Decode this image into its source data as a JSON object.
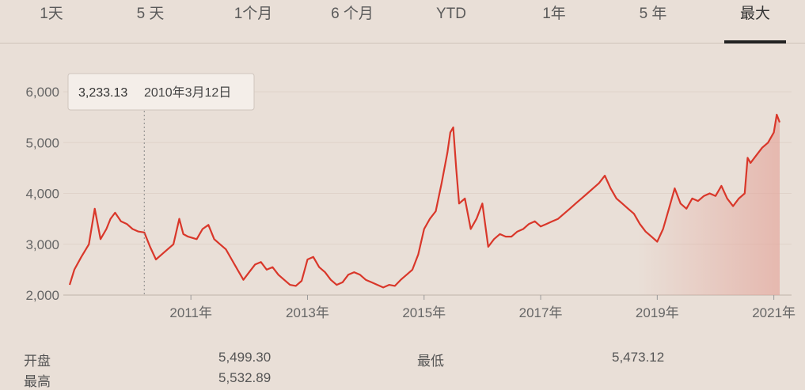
{
  "tabs": [
    {
      "label": "1天"
    },
    {
      "label": "5 天"
    },
    {
      "label": "1个月"
    },
    {
      "label": "6 个月"
    },
    {
      "label": "YTD"
    },
    {
      "label": "1年"
    },
    {
      "label": "5 年"
    },
    {
      "label": "最大"
    }
  ],
  "active_tab": "最大",
  "tooltip": {
    "value": "3,233.13",
    "date": "2010年3月12日"
  },
  "stats": {
    "open_label": "开盘",
    "open_value": "5,499.30",
    "low_label": "最低",
    "low_value": "5,473.12",
    "high_label": "最高",
    "high_value": "5,532.89"
  },
  "colors": {
    "line": "#d9372a",
    "background": "#e9dfd7",
    "fill": "#e4a89e"
  },
  "chart_data": {
    "type": "area",
    "xlabel": "",
    "ylabel": "",
    "y_ticks": [
      "2,000",
      "3,000",
      "4,000",
      "5,000",
      "6,000"
    ],
    "x_ticks": [
      "2011年",
      "2013年",
      "2015年",
      "2017年",
      "2019年",
      "2021年"
    ],
    "ylim": [
      2000,
      6300
    ],
    "grid": true,
    "series": [
      {
        "x": [
          2008.92,
          2009.0,
          2009.12,
          2009.25,
          2009.35,
          2009.45,
          2009.55,
          2009.62,
          2009.7,
          2009.8,
          2009.9,
          2010.0,
          2010.1,
          2010.2,
          2010.3,
          2010.4,
          2010.5,
          2010.6,
          2010.7,
          2010.8,
          2010.87,
          2010.95,
          2011.1,
          2011.2,
          2011.3,
          2011.4,
          2011.5,
          2011.6,
          2011.7,
          2011.8,
          2011.9,
          2012.0,
          2012.1,
          2012.2,
          2012.3,
          2012.4,
          2012.5,
          2012.6,
          2012.7,
          2012.8,
          2012.9,
          2013.0,
          2013.1,
          2013.2,
          2013.3,
          2013.4,
          2013.5,
          2013.6,
          2013.7,
          2013.8,
          2013.9,
          2014.0,
          2014.1,
          2014.2,
          2014.3,
          2014.4,
          2014.5,
          2014.6,
          2014.7,
          2014.8,
          2014.9,
          2015.0,
          2015.1,
          2015.2,
          2015.3,
          2015.4,
          2015.45,
          2015.5,
          2015.55,
          2015.6,
          2015.7,
          2015.8,
          2015.9,
          2016.0,
          2016.1,
          2016.2,
          2016.3,
          2016.4,
          2016.5,
          2016.6,
          2016.7,
          2016.8,
          2016.9,
          2017.0,
          2017.1,
          2017.2,
          2017.3,
          2017.4,
          2017.5,
          2017.6,
          2017.7,
          2017.8,
          2017.9,
          2018.0,
          2018.1,
          2018.2,
          2018.3,
          2018.4,
          2018.5,
          2018.6,
          2018.7,
          2018.8,
          2018.9,
          2019.0,
          2019.1,
          2019.2,
          2019.3,
          2019.4,
          2019.5,
          2019.6,
          2019.7,
          2019.8,
          2019.9,
          2020.0,
          2020.1,
          2020.2,
          2020.3,
          2020.4,
          2020.5,
          2020.55,
          2020.6,
          2020.7,
          2020.8,
          2020.9,
          2021.0,
          2021.05,
          2021.1
        ],
        "y": [
          2200,
          2500,
          2750,
          3000,
          3700,
          3100,
          3300,
          3500,
          3620,
          3450,
          3400,
          3300,
          3250,
          3233,
          2950,
          2700,
          2800,
          2900,
          3000,
          3500,
          3200,
          3150,
          3100,
          3300,
          3380,
          3100,
          3000,
          2900,
          2700,
          2500,
          2300,
          2450,
          2600,
          2650,
          2500,
          2550,
          2400,
          2300,
          2200,
          2180,
          2280,
          2700,
          2750,
          2550,
          2450,
          2300,
          2200,
          2250,
          2400,
          2450,
          2400,
          2300,
          2250,
          2200,
          2150,
          2200,
          2180,
          2300,
          2400,
          2500,
          2800,
          3300,
          3500,
          3650,
          4200,
          4800,
          5200,
          5300,
          4500,
          3800,
          3900,
          3300,
          3500,
          3800,
          2950,
          3100,
          3200,
          3150,
          3150,
          3250,
          3300,
          3400,
          3450,
          3350,
          3400,
          3450,
          3500,
          3600,
          3700,
          3800,
          3900,
          4000,
          4100,
          4200,
          4350,
          4100,
          3900,
          3800,
          3700,
          3600,
          3400,
          3250,
          3150,
          3050,
          3300,
          3700,
          4100,
          3800,
          3700,
          3900,
          3850,
          3950,
          4000,
          3950,
          4150,
          3900,
          3750,
          3900,
          4000,
          4700,
          4600,
          4750,
          4900,
          5000,
          5200,
          5550,
          5400
        ]
      }
    ],
    "hover": {
      "x": 2010.2,
      "y": 3233.13
    }
  }
}
